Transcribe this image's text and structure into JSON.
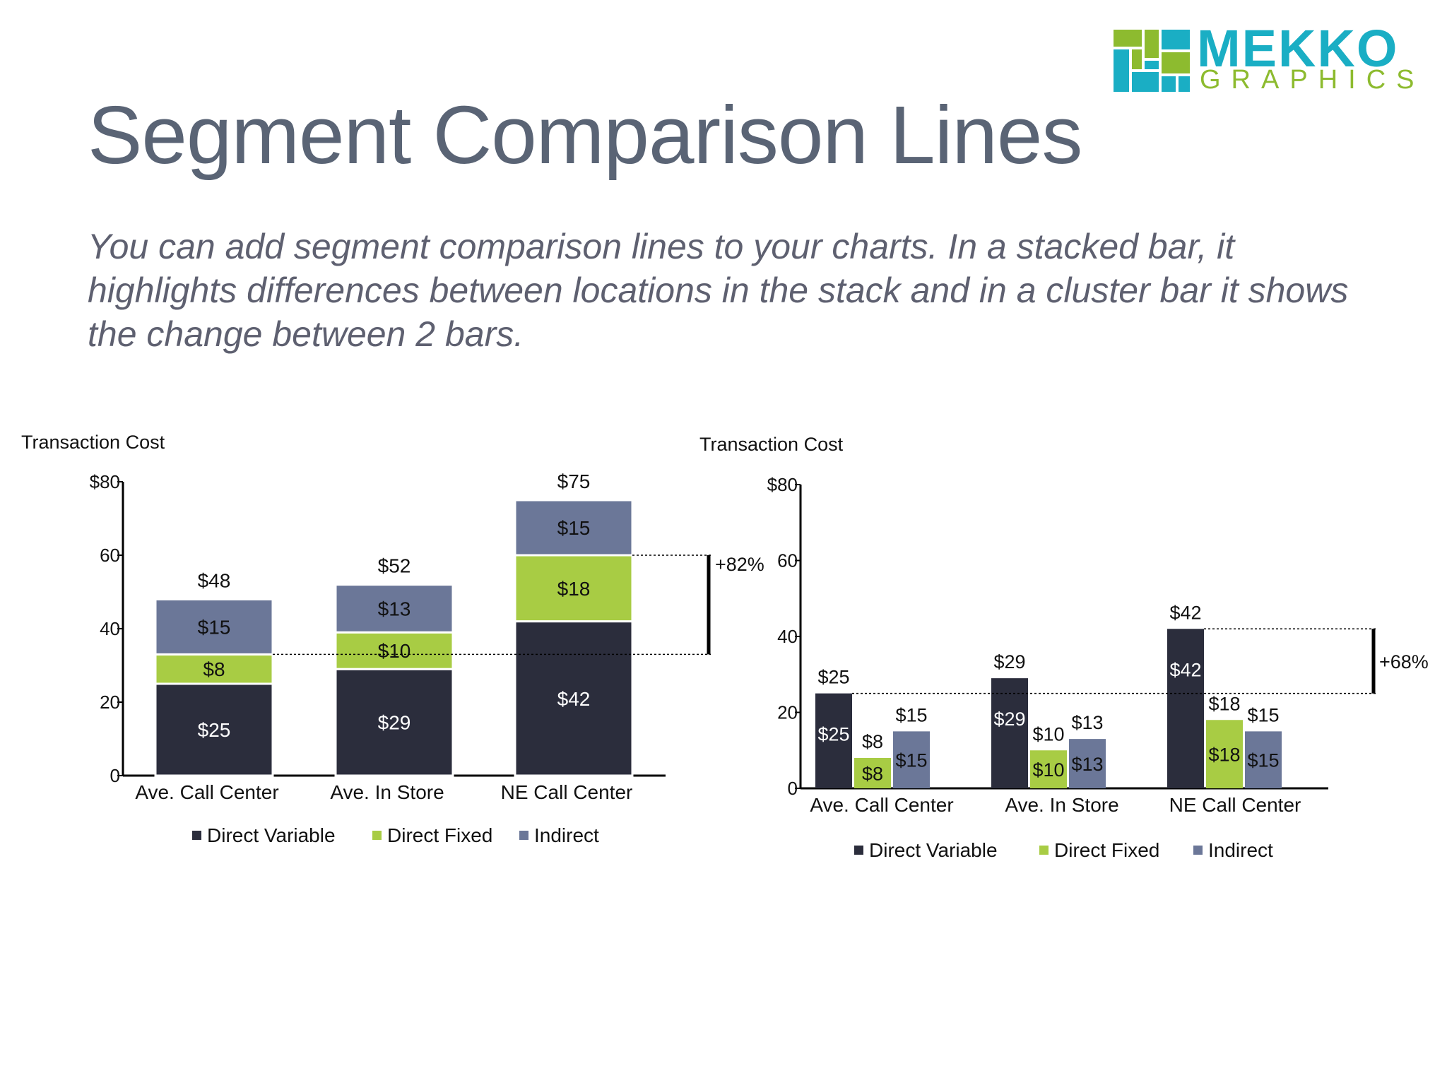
{
  "logo": {
    "word1": "MEKKO",
    "word2": "GRAPHICS"
  },
  "title": "Segment Comparison Lines",
  "subtitle": "You can add segment comparison lines to your charts. In a stacked bar, it highlights differences between locations in the stack and in a cluster bar it shows the change between 2 bars.",
  "colors": {
    "direct_variable": "#2b2d3c",
    "direct_fixed": "#a8cc44",
    "indirect": "#6b7798",
    "axis": "#000000",
    "title": "#5a6475",
    "logo_teal": "#1aaec4",
    "logo_green": "#8dbb2f"
  },
  "chart_data": [
    {
      "type": "bar",
      "stacked": true,
      "ylabel": "Transaction Cost",
      "ylim": [
        0,
        80
      ],
      "yticks": [
        0,
        20,
        40,
        60,
        80
      ],
      "ytick_labels": [
        "0",
        "20",
        "40",
        "60",
        "$80"
      ],
      "categories": [
        "Ave. Call Center",
        "Ave. In Store",
        "NE Call Center"
      ],
      "series": [
        {
          "name": "Direct Variable",
          "values": [
            25,
            29,
            42
          ],
          "labels": [
            "$25",
            "$29",
            "$42"
          ]
        },
        {
          "name": "Direct Fixed",
          "values": [
            8,
            10,
            18
          ],
          "labels": [
            "$8",
            "$10",
            "$18"
          ]
        },
        {
          "name": "Indirect",
          "values": [
            15,
            13,
            15
          ],
          "labels": [
            "$15",
            "$13",
            "$15"
          ]
        }
      ],
      "totals": [
        "$48",
        "$52",
        "$75"
      ],
      "comparison": {
        "label": "+82%",
        "from_value": 33,
        "to_value": 60
      },
      "legend": "bottom"
    },
    {
      "type": "bar",
      "stacked": false,
      "ylabel": "Transaction Cost",
      "ylim": [
        0,
        80
      ],
      "yticks": [
        0,
        20,
        40,
        60,
        80
      ],
      "ytick_labels": [
        "0",
        "20",
        "40",
        "60",
        "$80"
      ],
      "categories": [
        "Ave. Call Center",
        "Ave. In Store",
        "NE Call Center"
      ],
      "series": [
        {
          "name": "Direct Variable",
          "values": [
            25,
            29,
            42
          ],
          "labels": [
            "$25",
            "$29",
            "$42"
          ]
        },
        {
          "name": "Direct Fixed",
          "values": [
            8,
            10,
            18
          ],
          "labels": [
            "$8",
            "$10",
            "$18"
          ]
        },
        {
          "name": "Indirect",
          "values": [
            15,
            13,
            15
          ],
          "labels": [
            "$15",
            "$13",
            "$15"
          ]
        }
      ],
      "comparison": {
        "label": "+68%",
        "from_value": 25,
        "to_value": 42
      },
      "legend": "bottom"
    }
  ]
}
